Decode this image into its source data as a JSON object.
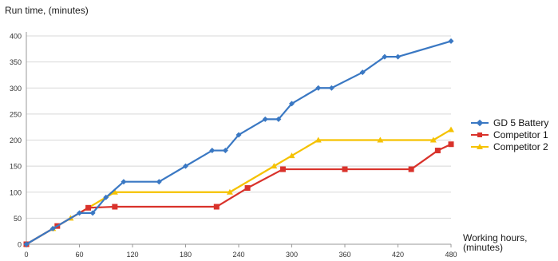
{
  "chart_data": {
    "type": "line",
    "ylabel": "Run time, (minutes)",
    "xlabel": "Working hours, (minutes)",
    "xlim": [
      0,
      480
    ],
    "ylim": [
      0,
      400
    ],
    "x_ticks": [
      0,
      60,
      120,
      180,
      240,
      300,
      360,
      420,
      480
    ],
    "y_ticks": [
      0,
      50,
      100,
      150,
      200,
      250,
      300,
      350,
      400
    ],
    "grid": "horizontal",
    "legend_position": "right",
    "series": [
      {
        "name": "GD 5 Battery",
        "color": "#3a78c3",
        "marker": "diamond",
        "points": [
          [
            0,
            0
          ],
          [
            30,
            30
          ],
          [
            60,
            60
          ],
          [
            75,
            60
          ],
          [
            90,
            90
          ],
          [
            110,
            120
          ],
          [
            150,
            120
          ],
          [
            180,
            150
          ],
          [
            210,
            180
          ],
          [
            225,
            180
          ],
          [
            240,
            210
          ],
          [
            270,
            240
          ],
          [
            285,
            240
          ],
          [
            300,
            270
          ],
          [
            330,
            300
          ],
          [
            345,
            300
          ],
          [
            380,
            330
          ],
          [
            405,
            360
          ],
          [
            420,
            360
          ],
          [
            480,
            390
          ]
        ]
      },
      {
        "name": "Competitor 1",
        "color": "#d9322b",
        "marker": "square",
        "points": [
          [
            0,
            0
          ],
          [
            35,
            35
          ],
          [
            70,
            70
          ],
          [
            100,
            72
          ],
          [
            215,
            72
          ],
          [
            250,
            108
          ],
          [
            290,
            144
          ],
          [
            360,
            144
          ],
          [
            435,
            144
          ],
          [
            465,
            180
          ],
          [
            480,
            192
          ]
        ]
      },
      {
        "name": "Competitor 2",
        "color": "#f5c200",
        "marker": "triangle",
        "points": [
          [
            0,
            0
          ],
          [
            30,
            30
          ],
          [
            50,
            50
          ],
          [
            100,
            100
          ],
          [
            230,
            100
          ],
          [
            280,
            150
          ],
          [
            300,
            170
          ],
          [
            330,
            200
          ],
          [
            400,
            200
          ],
          [
            460,
            200
          ],
          [
            480,
            220
          ]
        ]
      }
    ]
  }
}
